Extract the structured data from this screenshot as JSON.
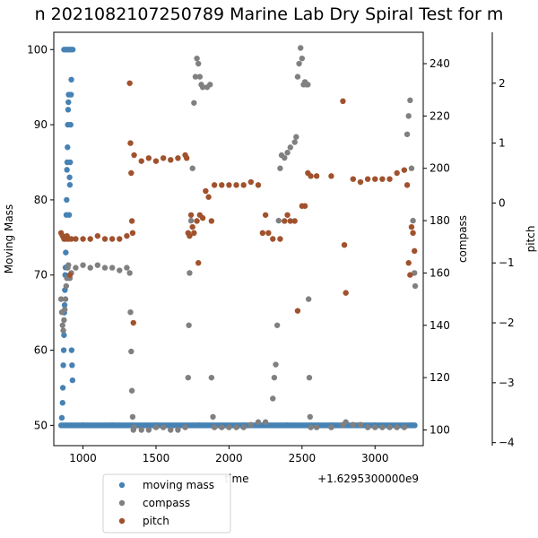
{
  "chart_data": {
    "type": "scatter",
    "title": "n 2021082107250789 Marine Lab Dry Spiral Test for m",
    "xlabel": "time",
    "x_offset_text": "+1.6295300000e9",
    "xlim": [
      800,
      3330
    ],
    "x_ticks": [
      1000,
      1500,
      2000,
      2500,
      3000
    ],
    "axes": {
      "moving_mass": {
        "label": "Moving Mass",
        "ylim": [
          47.3,
          102.3
        ],
        "ticks": [
          50,
          60,
          70,
          80,
          90,
          100
        ],
        "side": "left"
      },
      "compass": {
        "label": "compass",
        "ylim": [
          94.0,
          252.0
        ],
        "ticks": [
          100,
          120,
          140,
          160,
          180,
          200,
          220,
          240
        ],
        "side": "right"
      },
      "pitch": {
        "label": "pitch",
        "ylim": [
          -4.05,
          2.85
        ],
        "ticks": [
          -4,
          -3,
          -2,
          -1,
          0,
          1,
          2
        ],
        "side": "right-outer"
      }
    },
    "legend": {
      "position": "below-left",
      "entries": [
        "moving mass",
        "compass",
        "pitch"
      ]
    },
    "series": [
      {
        "name": "moving mass",
        "axis": "moving_mass",
        "color": "#4682b4",
        "points": [
          [
            850,
            50
          ],
          [
            855,
            51
          ],
          [
            860,
            53
          ],
          [
            862,
            55
          ],
          [
            865,
            58
          ],
          [
            868,
            60
          ],
          [
            870,
            62
          ],
          [
            872,
            65
          ],
          [
            874,
            66
          ],
          [
            876,
            68
          ],
          [
            878,
            70
          ],
          [
            880,
            71
          ],
          [
            882,
            73
          ],
          [
            884,
            75
          ],
          [
            886,
            78
          ],
          [
            888,
            80
          ],
          [
            890,
            84
          ],
          [
            892,
            85
          ],
          [
            894,
            87
          ],
          [
            896,
            90
          ],
          [
            898,
            92
          ],
          [
            900,
            93
          ],
          [
            902,
            94
          ],
          [
            870,
            100
          ],
          [
            880,
            100
          ],
          [
            890,
            100
          ],
          [
            900,
            100
          ],
          [
            910,
            100
          ],
          [
            920,
            100
          ],
          [
            930,
            100
          ],
          [
            910,
            82
          ],
          [
            912,
            85
          ],
          [
            915,
            90
          ],
          [
            918,
            94
          ],
          [
            920,
            96
          ],
          [
            922,
            60
          ],
          [
            925,
            58
          ],
          [
            928,
            56
          ],
          [
            905,
            78
          ],
          [
            908,
            83
          ],
          [
            1000,
            50
          ],
          [
            1200,
            50
          ],
          [
            1500,
            50
          ],
          [
            1800,
            50
          ],
          [
            2100,
            50
          ],
          [
            2400,
            50
          ],
          [
            2700,
            50
          ],
          [
            3000,
            50
          ],
          [
            3250,
            50
          ]
        ],
        "band": [
          860,
          3280,
          50
        ]
      },
      {
        "name": "compass",
        "axis": "compass",
        "color": "#808080",
        "points": [
          [
            850,
            150
          ],
          [
            855,
            145
          ],
          [
            860,
            140
          ],
          [
            865,
            138
          ],
          [
            870,
            142
          ],
          [
            875,
            146
          ],
          [
            880,
            150
          ],
          [
            885,
            155
          ],
          [
            890,
            158
          ],
          [
            895,
            162
          ],
          [
            900,
            163
          ],
          [
            910,
            158
          ],
          [
            920,
            160
          ],
          [
            950,
            162
          ],
          [
            1000,
            163
          ],
          [
            1050,
            162
          ],
          [
            1100,
            163
          ],
          [
            1150,
            162
          ],
          [
            1200,
            162
          ],
          [
            1250,
            161
          ],
          [
            1300,
            162
          ],
          [
            1320,
            160
          ],
          [
            1325,
            145
          ],
          [
            1330,
            130
          ],
          [
            1335,
            115
          ],
          [
            1340,
            105
          ],
          [
            1345,
            100
          ],
          [
            1350,
            101
          ],
          [
            1400,
            100
          ],
          [
            1450,
            100
          ],
          [
            1500,
            101
          ],
          [
            1550,
            101
          ],
          [
            1600,
            100
          ],
          [
            1650,
            100
          ],
          [
            1700,
            101
          ],
          [
            1720,
            120
          ],
          [
            1725,
            140
          ],
          [
            1730,
            160
          ],
          [
            1740,
            180
          ],
          [
            1750,
            200
          ],
          [
            1760,
            225
          ],
          [
            1770,
            235
          ],
          [
            1780,
            242
          ],
          [
            1790,
            240
          ],
          [
            1800,
            235
          ],
          [
            1810,
            232
          ],
          [
            1820,
            231
          ],
          [
            1850,
            231
          ],
          [
            1870,
            232
          ],
          [
            1880,
            120
          ],
          [
            1890,
            105
          ],
          [
            1900,
            101
          ],
          [
            1950,
            101
          ],
          [
            2000,
            101
          ],
          [
            2050,
            101
          ],
          [
            2100,
            101
          ],
          [
            2150,
            102
          ],
          [
            2200,
            103
          ],
          [
            2250,
            103
          ],
          [
            2300,
            112
          ],
          [
            2310,
            120
          ],
          [
            2320,
            125
          ],
          [
            2330,
            140
          ],
          [
            2340,
            180
          ],
          [
            2350,
            200
          ],
          [
            2360,
            205
          ],
          [
            2380,
            204
          ],
          [
            2400,
            206
          ],
          [
            2420,
            208
          ],
          [
            2450,
            210
          ],
          [
            2460,
            212
          ],
          [
            2470,
            235
          ],
          [
            2480,
            240
          ],
          [
            2490,
            246
          ],
          [
            2500,
            242
          ],
          [
            2510,
            232
          ],
          [
            2520,
            233
          ],
          [
            2530,
            232
          ],
          [
            2540,
            232
          ],
          [
            2545,
            150
          ],
          [
            2550,
            120
          ],
          [
            2555,
            105
          ],
          [
            2560,
            101
          ],
          [
            2600,
            101
          ],
          [
            2700,
            101
          ],
          [
            2780,
            102
          ],
          [
            2800,
            103
          ],
          [
            2850,
            102
          ],
          [
            2900,
            102
          ],
          [
            2950,
            101
          ],
          [
            3000,
            101
          ],
          [
            3050,
            101
          ],
          [
            3100,
            101
          ],
          [
            3150,
            101
          ],
          [
            3200,
            101
          ],
          [
            3220,
            213
          ],
          [
            3230,
            220
          ],
          [
            3240,
            226
          ],
          [
            3250,
            200
          ],
          [
            3260,
            180
          ],
          [
            3270,
            160
          ],
          [
            3275,
            155
          ]
        ]
      },
      {
        "name": "pitch",
        "axis": "pitch",
        "color": "#a0522d",
        "points": [
          [
            850,
            -0.5
          ],
          [
            860,
            -0.55
          ],
          [
            870,
            -0.6
          ],
          [
            880,
            -0.6
          ],
          [
            890,
            -0.55
          ],
          [
            900,
            -0.6
          ],
          [
            910,
            -1.2
          ],
          [
            920,
            -0.6
          ],
          [
            950,
            -0.6
          ],
          [
            1000,
            -0.6
          ],
          [
            1050,
            -0.6
          ],
          [
            1100,
            -0.55
          ],
          [
            1150,
            -0.6
          ],
          [
            1200,
            -0.6
          ],
          [
            1250,
            -0.6
          ],
          [
            1300,
            -0.55
          ],
          [
            1320,
            2.0
          ],
          [
            1325,
            1.0
          ],
          [
            1330,
            0.5
          ],
          [
            1335,
            -0.3
          ],
          [
            1340,
            -0.5
          ],
          [
            1345,
            -2.0
          ],
          [
            1350,
            0.8
          ],
          [
            1400,
            0.7
          ],
          [
            1450,
            0.75
          ],
          [
            1500,
            0.7
          ],
          [
            1550,
            0.75
          ],
          [
            1600,
            0.72
          ],
          [
            1650,
            0.75
          ],
          [
            1700,
            0.8
          ],
          [
            1710,
            0.75
          ],
          [
            1720,
            -0.5
          ],
          [
            1730,
            -0.55
          ],
          [
            1740,
            -0.2
          ],
          [
            1750,
            -0.4
          ],
          [
            1760,
            -0.5
          ],
          [
            1780,
            -0.3
          ],
          [
            1790,
            -1.0
          ],
          [
            1800,
            -0.2
          ],
          [
            1820,
            -0.25
          ],
          [
            1840,
            0.2
          ],
          [
            1860,
            0.1
          ],
          [
            1880,
            -0.3
          ],
          [
            1900,
            0.3
          ],
          [
            1950,
            0.3
          ],
          [
            2000,
            0.3
          ],
          [
            2050,
            0.3
          ],
          [
            2100,
            0.3
          ],
          [
            2150,
            0.35
          ],
          [
            2200,
            0.3
          ],
          [
            2230,
            -0.5
          ],
          [
            2250,
            -0.2
          ],
          [
            2270,
            -0.5
          ],
          [
            2300,
            -0.6
          ],
          [
            2350,
            -0.6
          ],
          [
            2380,
            -0.3
          ],
          [
            2400,
            -0.2
          ],
          [
            2420,
            -0.3
          ],
          [
            2450,
            -0.3
          ],
          [
            2470,
            -1.8
          ],
          [
            2500,
            -0.05
          ],
          [
            2520,
            -0.05
          ],
          [
            2540,
            0.5
          ],
          [
            2560,
            0.45
          ],
          [
            2600,
            0.45
          ],
          [
            2700,
            0.45
          ],
          [
            2780,
            1.7
          ],
          [
            2790,
            -0.7
          ],
          [
            2800,
            -1.5
          ],
          [
            2850,
            0.4
          ],
          [
            2900,
            0.35
          ],
          [
            2950,
            0.4
          ],
          [
            3000,
            0.4
          ],
          [
            3050,
            0.4
          ],
          [
            3100,
            0.4
          ],
          [
            3150,
            0.5
          ],
          [
            3200,
            0.55
          ],
          [
            3220,
            0.3
          ],
          [
            3230,
            -1.0
          ],
          [
            3240,
            -1.2
          ],
          [
            3250,
            -0.4
          ],
          [
            3260,
            -0.5
          ],
          [
            3270,
            -0.8
          ]
        ]
      }
    ]
  }
}
